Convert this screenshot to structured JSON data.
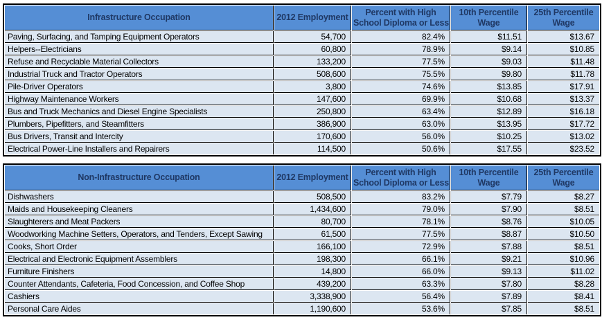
{
  "style": {
    "header_bg": "#558ED5",
    "header_text": "#1F3864",
    "row_bg": "#DCE6F1",
    "border_color": "#000000"
  },
  "chart_data": [
    {
      "type": "table",
      "title": "Infrastructure Occupation",
      "columns": [
        "Infrastructure Occupation",
        "2012 Employment",
        "Percent with High\nSchool Diploma or Less",
        "10th Percentile\nWage",
        "25th Percentile\nWage"
      ],
      "rows": [
        [
          "Paving, Surfacing, and Tamping Equipment Operators",
          "54,700",
          "82.4%",
          "$11.51",
          "$13.67"
        ],
        [
          "Helpers--Electricians",
          "60,800",
          "78.9%",
          "$9.14",
          "$10.85"
        ],
        [
          "Refuse and Recyclable Material Collectors",
          "133,200",
          "77.5%",
          "$9.03",
          "$11.48"
        ],
        [
          "Industrial Truck and Tractor Operators",
          "508,600",
          "75.5%",
          "$9.80",
          "$11.78"
        ],
        [
          "Pile-Driver Operators",
          "3,800",
          "74.6%",
          "$13.85",
          "$17.91"
        ],
        [
          "Highway Maintenance Workers",
          "147,600",
          "69.9%",
          "$10.68",
          "$13.37"
        ],
        [
          "Bus and Truck Mechanics and Diesel Engine Specialists",
          "250,800",
          "63.4%",
          "$12.89",
          "$16.18"
        ],
        [
          "Plumbers, Pipefitters, and Steamfitters",
          "386,900",
          "63.0%",
          "$13.95",
          "$17.72"
        ],
        [
          "Bus Drivers, Transit and Intercity",
          "170,600",
          "56.0%",
          "$10.25",
          "$13.02"
        ],
        [
          "Electrical Power-Line Installers and Repairers",
          "114,500",
          "50.6%",
          "$17.55",
          "$23.52"
        ]
      ]
    },
    {
      "type": "table",
      "title": "Non-Infrastructure Occupation",
      "columns": [
        "Non-Infrastructure Occupation",
        "2012 Employment",
        "Percent with High\nSchool Diploma or Less",
        "10th Percentile\nWage",
        "25th Percentile\nWage"
      ],
      "rows": [
        [
          "Dishwashers",
          "508,500",
          "83.2%",
          "$7.79",
          "$8.27"
        ],
        [
          "Maids and Housekeeping Cleaners",
          "1,434,600",
          "79.0%",
          "$7.90",
          "$8.51"
        ],
        [
          "Slaughterers and Meat Packers",
          "80,700",
          "78.1%",
          "$8.76",
          "$10.05"
        ],
        [
          "Woodworking Machine Setters, Operators, and Tenders, Except Sawing",
          "61,500",
          "77.5%",
          "$8.87",
          "$10.50"
        ],
        [
          "Cooks, Short Order",
          "166,100",
          "72.9%",
          "$7.88",
          "$8.51"
        ],
        [
          "Electrical and Electronic Equipment Assemblers",
          "198,300",
          "66.1%",
          "$9.21",
          "$10.96"
        ],
        [
          "Furniture Finishers",
          "14,800",
          "66.0%",
          "$9.13",
          "$11.02"
        ],
        [
          "Counter Attendants, Cafeteria, Food Concession, and Coffee Shop",
          "439,200",
          "63.3%",
          "$7.80",
          "$8.28"
        ],
        [
          "Cashiers",
          "3,338,900",
          "56.4%",
          "$7.89",
          "$8.41"
        ],
        [
          "Personal Care Aides",
          "1,190,600",
          "53.6%",
          "$7.85",
          "$8.51"
        ]
      ]
    }
  ]
}
